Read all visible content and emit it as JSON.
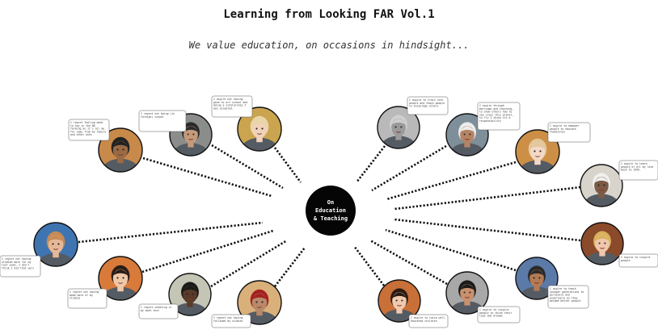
{
  "title": "Learning from Looking FAR Vol.1",
  "subtitle": "We value education, on occasions in hindsight...",
  "hub": {
    "line1": "On",
    "line2": "Education",
    "line3": "& Teaching"
  },
  "people": [
    {
      "skin": "#9a6a45",
      "hair": "#222222",
      "bg": "#c88a4a",
      "quote": "I regret feeling meek to say in the NO farming as it's all me for sake from my family and other ones"
    },
    {
      "skin": "#c49a7a",
      "hair": "#2a2a2a",
      "bg": "#8a8d8a",
      "quote": "I regret not being (in foreign) school"
    },
    {
      "skin": "#f1d2bb",
      "hair": "#e9d6a8",
      "bg": "#caa44f",
      "quote": "I aspire not having gone to art school and doing a scholarship I was accepted."
    },
    {
      "skin": "#9a9a9a",
      "hair": "#cfcfcf",
      "bg": "#b9b9b9",
      "quote": "I aspire to train lots people and teach people to encourage others"
    },
    {
      "skin": "#b48465",
      "hair": "#ececec",
      "bg": "#7f8f9a",
      "quote": "I aspire through marriage and teaching, to show others how to see lives this planet, to fly I think its a responsibility"
    },
    {
      "skin": "#f3d8c5",
      "hair": "#e3c69a",
      "bg": "#cc8f45",
      "quote": "I aspire to empower people to educate themselves"
    },
    {
      "skin": "#7d5a45",
      "hair": "#f0f0f0",
      "bg": "#d8d4cc",
      "quote": "I aspire to teach people of all my love back to 1999."
    },
    {
      "skin": "#e5b898",
      "hair": "#c58a55",
      "bg": "#3f74b0",
      "quote": "I regret not having studied more for my last exam, I don't think I did that well"
    },
    {
      "skin": "#efc8a8",
      "hair": "#2b1d14",
      "bg": "#d87a3a",
      "quote": "I regret not having made more of my studies"
    },
    {
      "skin": "#5a3a28",
      "hair": "#1a1a1a",
      "bg": "#c5c5b5",
      "quote": "I regret cheating in my math test"
    },
    {
      "skin": "#b9896a",
      "hair": "#a52020",
      "bg": "#d9b07a",
      "quote": "I regret not having followed my studies"
    },
    {
      "skin": "#f1c9ad",
      "hair": "#2a1a12",
      "bg": "#c87038",
      "quote": "I aspire to raise well educated children"
    },
    {
      "skin": "#c9906e",
      "hair": "#1b1b1b",
      "bg": "#a8a8a8",
      "quote": "I aspire to inspire people to think their tops and dreams"
    },
    {
      "skin": "#b27a55",
      "hair": "#2a2a2a",
      "bg": "#5b7aa8",
      "quote": "I aspire to teach younger generations to persevere and experience as they become better people"
    },
    {
      "skin": "#f0c7aa",
      "hair": "#d9b15c",
      "bg": "#8b4a2a",
      "quote": "I aspire to inspire people"
    }
  ]
}
